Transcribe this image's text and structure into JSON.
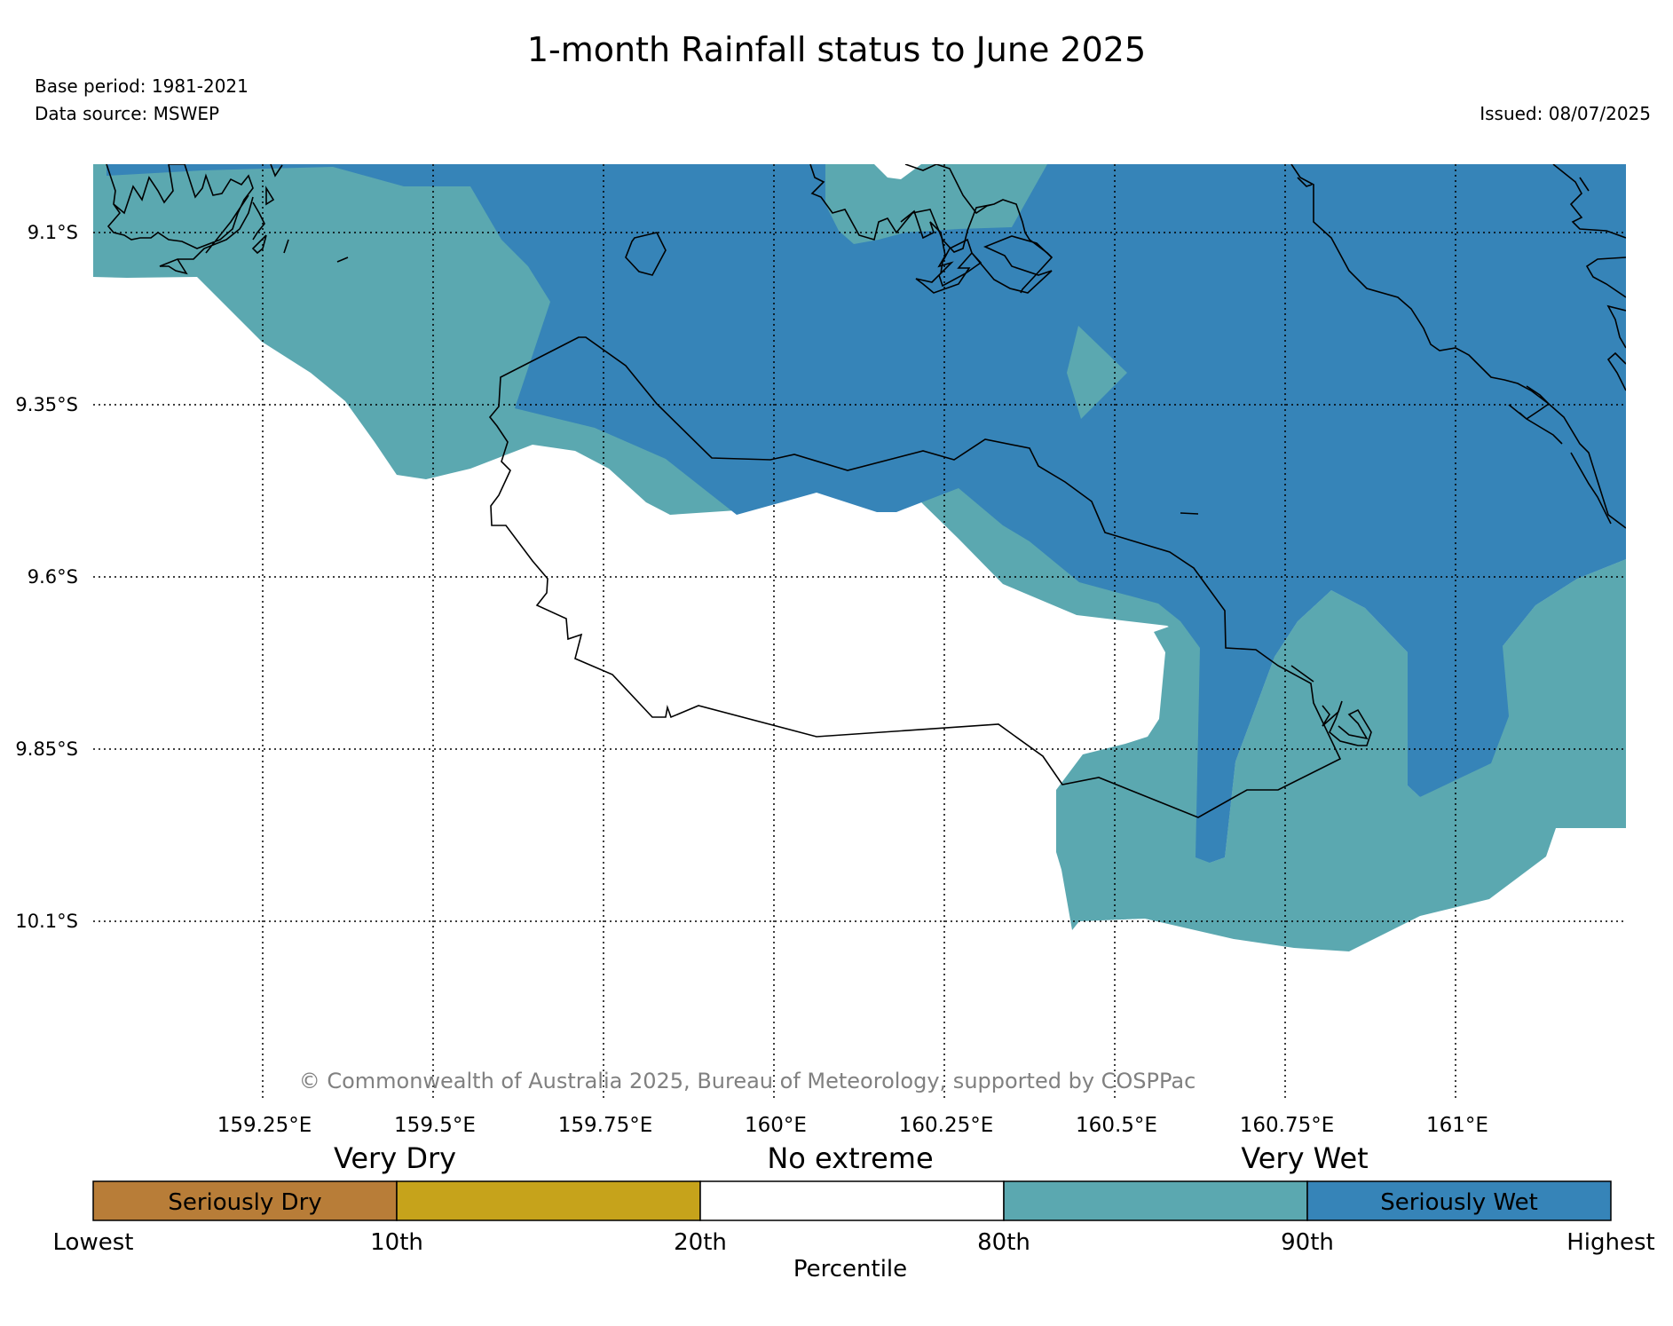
{
  "header": {
    "title": "1-month Rainfall status to June 2025",
    "base_period": "Base period: 1981-2021",
    "data_source": "Data source: MSWEP",
    "issued": "Issued: 08/07/2025"
  },
  "map": {
    "lat_labels": [
      "9.1°S",
      "9.35°S",
      "9.6°S",
      "9.85°S",
      "10.1°S"
    ],
    "lon_labels": [
      "159.25°E",
      "159.5°E",
      "159.75°E",
      "160°E",
      "160.25°E",
      "160.5°E",
      "160.75°E",
      "161°E"
    ],
    "extent": {
      "lon": [
        159.0,
        161.25
      ],
      "lat": [
        -9.0,
        -10.35
      ]
    },
    "copyright": "© Commonwealth of Australia 2025, Bureau of Meteorology, supported by COSPPac",
    "zone_colors": {
      "very_wet": "#5ba8b0",
      "seriously_wet": "#3684b8",
      "no_extreme": "#ffffff"
    }
  },
  "legend": {
    "group_labels": [
      "Very Dry",
      "No extreme",
      "Very Wet"
    ],
    "segments": [
      {
        "label": "Seriously Dry",
        "color": "#b87d38"
      },
      {
        "label": "",
        "color": "#c6a31b"
      },
      {
        "label": "",
        "color": "#ffffff"
      },
      {
        "label": "",
        "color": "#5ba8b0"
      },
      {
        "label": "Seriously Wet",
        "color": "#3684b8"
      }
    ],
    "ticks": [
      "Lowest",
      "10th",
      "20th",
      "80th",
      "90th",
      "Highest"
    ],
    "axis_title": "Percentile"
  }
}
